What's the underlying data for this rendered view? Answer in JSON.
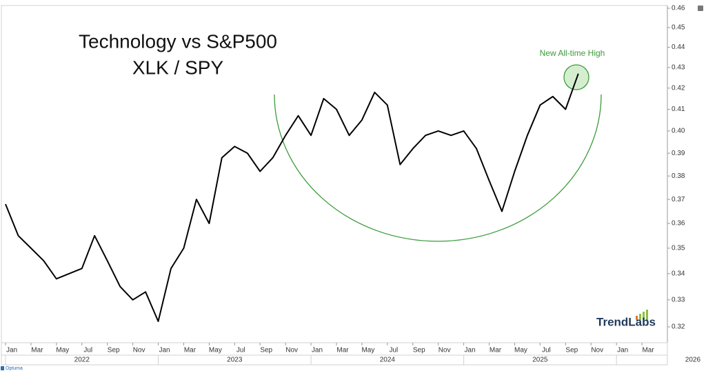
{
  "chart_data": {
    "type": "line",
    "title": "Technology vs S&P500",
    "subtitle": "XLK / SPY",
    "annotation": "New All-time High",
    "logo": "TrendLabs",
    "footer": "Optuma",
    "x": [
      "2022-01",
      "2022-02",
      "2022-03",
      "2022-04",
      "2022-05",
      "2022-06",
      "2022-07",
      "2022-08",
      "2022-09",
      "2022-10",
      "2022-11",
      "2022-12",
      "2023-01",
      "2023-02",
      "2023-03",
      "2023-04",
      "2023-05",
      "2023-06",
      "2023-07",
      "2023-08",
      "2023-09",
      "2023-10",
      "2023-11",
      "2023-12",
      "2024-01",
      "2024-02",
      "2024-03",
      "2024-04",
      "2024-05",
      "2024-06",
      "2024-07",
      "2024-08",
      "2024-09",
      "2024-10",
      "2024-11",
      "2024-12",
      "2025-01",
      "2025-02",
      "2025-03",
      "2025-04",
      "2025-05",
      "2025-06",
      "2025-07",
      "2025-08",
      "2025-09",
      "2025-10"
    ],
    "series": [
      {
        "color": "#000000",
        "values": [
          0.368,
          0.355,
          0.35,
          0.345,
          0.338,
          0.34,
          0.342,
          0.355,
          0.345,
          0.335,
          0.33,
          0.333,
          0.322,
          0.342,
          0.35,
          0.37,
          0.36,
          0.388,
          0.393,
          0.39,
          0.382,
          0.388,
          0.398,
          0.407,
          0.398,
          0.415,
          0.41,
          0.398,
          0.405,
          0.418,
          0.412,
          0.385,
          0.392,
          0.398,
          0.4,
          0.398,
          0.4,
          0.392,
          0.378,
          0.365,
          0.382,
          0.398,
          0.412,
          0.416,
          0.41,
          0.427
        ]
      }
    ],
    "xlim": [
      "2022-01",
      "2026-05"
    ],
    "xticks": [
      {
        "value": "2022-01",
        "label": "Jan"
      },
      {
        "value": "2022-03",
        "label": "Mar"
      },
      {
        "value": "2022-05",
        "label": "May"
      },
      {
        "value": "2022-07",
        "label": "Jul"
      },
      {
        "value": "2022-09",
        "label": "Sep"
      },
      {
        "value": "2022-11",
        "label": "Nov"
      },
      {
        "value": "2023-01",
        "label": "Jan"
      },
      {
        "value": "2023-03",
        "label": "Mar"
      },
      {
        "value": "2023-05",
        "label": "May"
      },
      {
        "value": "2023-07",
        "label": "Jul"
      },
      {
        "value": "2023-09",
        "label": "Sep"
      },
      {
        "value": "2023-11",
        "label": "Nov"
      },
      {
        "value": "2024-01",
        "label": "Jan"
      },
      {
        "value": "2024-03",
        "label": "Mar"
      },
      {
        "value": "2024-05",
        "label": "May"
      },
      {
        "value": "2024-07",
        "label": "Jul"
      },
      {
        "value": "2024-09",
        "label": "Sep"
      },
      {
        "value": "2024-11",
        "label": "Nov"
      },
      {
        "value": "2025-01",
        "label": "Jan"
      },
      {
        "value": "2025-03",
        "label": "Mar"
      },
      {
        "value": "2025-05",
        "label": "May"
      },
      {
        "value": "2025-07",
        "label": "Jul"
      },
      {
        "value": "2025-09",
        "label": "Sep"
      },
      {
        "value": "2025-11",
        "label": "Nov"
      },
      {
        "value": "2026-01",
        "label": "Jan"
      },
      {
        "value": "2026-03",
        "label": "Mar"
      }
    ],
    "year_labels": [
      "2022",
      "2023",
      "2024",
      "2025",
      "2026"
    ],
    "ylim": [
      0.315,
      0.46
    ],
    "log_scale": true,
    "yticks": [
      0.32,
      0.33,
      0.34,
      0.35,
      0.36,
      0.37,
      0.38,
      0.39,
      {
        "value": 0.4,
        "label": "0.40"
      },
      0.41,
      0.42,
      0.43,
      0.44,
      0.45,
      0.46
    ],
    "grid": false
  }
}
